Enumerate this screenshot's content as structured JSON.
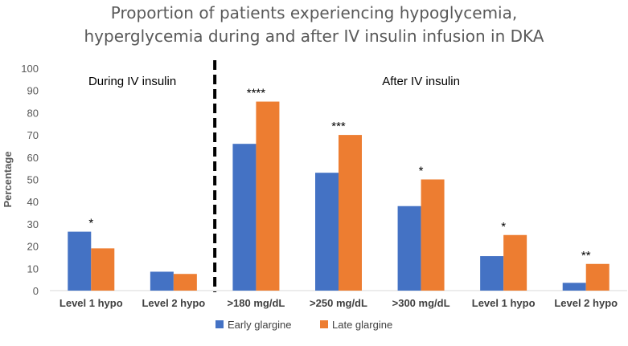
{
  "chart_data": {
    "type": "bar",
    "title_lines": [
      "Proportion of patients experiencing hypoglycemia,",
      "hyperglycemia during and after IV insulin infusion in DKA"
    ],
    "xlabel": "",
    "ylabel": "Percentage",
    "ylim": [
      0,
      100
    ],
    "y_ticks": [
      0,
      10,
      20,
      30,
      40,
      50,
      60,
      70,
      80,
      90,
      100
    ],
    "grid": false,
    "legend_position": "bottom-center",
    "categories": [
      "Level 1 hypo",
      "Level 2 hypo",
      ">180 mg/dL",
      ">250 mg/dL",
      ">300 mg/dL",
      "Level 1 hypo",
      "Level 2 hypo"
    ],
    "series": [
      {
        "name": "Early glargine",
        "color": "#4472C4",
        "values": [
          26.5,
          8.5,
          66,
          53,
          38,
          15.5,
          3.5
        ]
      },
      {
        "name": "Late glargine",
        "color": "#ED7D31",
        "values": [
          19,
          7.5,
          85,
          70,
          50,
          25,
          12
        ]
      }
    ],
    "significance": [
      "*",
      "",
      "****",
      "***",
      "*",
      "*",
      "**"
    ],
    "sections": [
      {
        "label": "During IV insulin",
        "categories": [
          0,
          1
        ]
      },
      {
        "label": "After IV insulin",
        "categories": [
          2,
          3,
          4,
          5,
          6
        ]
      }
    ],
    "divider_after_category": 1
  }
}
